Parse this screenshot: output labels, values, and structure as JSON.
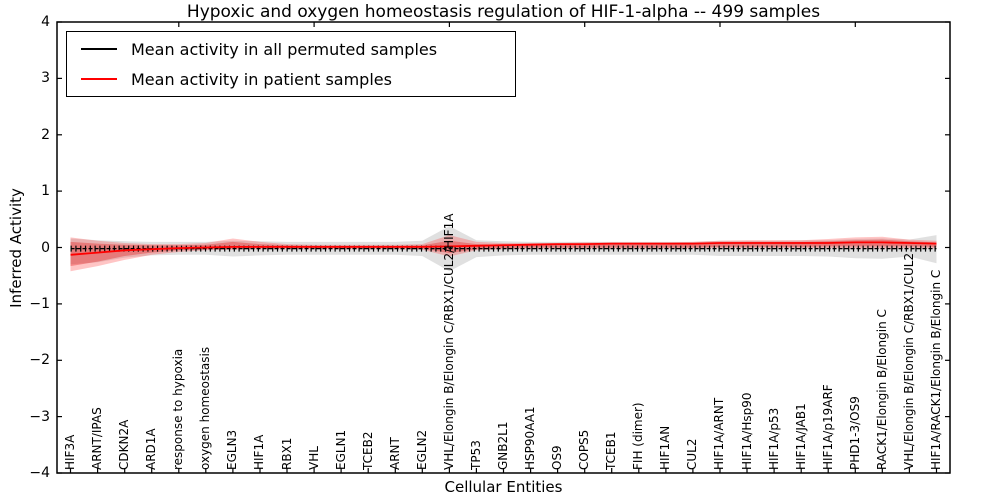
{
  "chart_data": {
    "type": "line",
    "title": "Hypoxic and oxygen homeostasis regulation of HIF-1-alpha -- 499 samples",
    "xlabel": "Cellular Entities",
    "ylabel": "Inferred Activity",
    "ylim": [
      -4,
      4
    ],
    "yticks": [
      4,
      3,
      2,
      1,
      0,
      -1,
      -2,
      -3,
      -4
    ],
    "ytick_labels": [
      "4",
      "3",
      "2",
      "1",
      "0",
      "−1",
      "−2",
      "−3",
      "−4"
    ],
    "grid": false,
    "legend_position": "upper left",
    "top_tick_indices": [
      4,
      9,
      14,
      19,
      24,
      29
    ],
    "categories": [
      "HIF3A",
      "ARNT/IPAS",
      "CDKN2A",
      "ARD1A",
      "response to hypoxia",
      "oxygen homeostasis",
      "EGLN3",
      "HIF1A",
      "RBX1",
      "VHL",
      "EGLN1",
      "TCEB2",
      "ARNT",
      "EGLN2",
      "VHL/Elongin B/Elongin C/RBX1/CUL2/HIF1A",
      "TP53",
      "GNB2L1",
      "HSP90AA1",
      "OS9",
      "COPS5",
      "TCEB1",
      "FIH (dimer)",
      "HIF1AN",
      "CUL2",
      "HIF1A/ARNT",
      "HIF1A/Hsp90",
      "HIF1A/p53",
      "HIF1A/JAB1",
      "HIF1A/p19ARF",
      "PHD1-3/OS9",
      "RACK1/Elongin B/Elongin C",
      "VHL/Elongin B/Elongin C/RBX1/CUL2",
      "HIF1A/RACK1/Elongin B/Elongin C"
    ],
    "series": [
      {
        "name": "Mean activity in all permuted samples",
        "kind": "line",
        "color": "#000000",
        "style": "dashed-with-tick-markers",
        "values": [
          -0.02,
          -0.02,
          -0.02,
          -0.02,
          -0.02,
          -0.02,
          -0.02,
          -0.02,
          -0.02,
          -0.02,
          -0.02,
          -0.02,
          -0.02,
          -0.02,
          -0.02,
          -0.02,
          -0.02,
          -0.02,
          -0.02,
          -0.02,
          -0.02,
          -0.02,
          -0.02,
          -0.02,
          -0.02,
          -0.02,
          -0.02,
          -0.02,
          -0.02,
          -0.02,
          -0.02,
          -0.02,
          -0.02
        ]
      },
      {
        "name": "Mean activity in patient samples",
        "kind": "line",
        "color": "#ff0000",
        "values": [
          -0.13,
          -0.09,
          -0.05,
          -0.03,
          -0.01,
          0.0,
          0.01,
          0.01,
          0.01,
          0.01,
          0.01,
          0.01,
          0.01,
          0.01,
          0.02,
          0.03,
          0.04,
          0.05,
          0.06,
          0.06,
          0.07,
          0.07,
          0.07,
          0.07,
          0.08,
          0.08,
          0.08,
          0.08,
          0.08,
          0.09,
          0.09,
          0.08,
          0.07
        ]
      },
      {
        "name": "Permuted samples envelope",
        "kind": "band",
        "color": "#adadad",
        "opacity": 0.38,
        "upper": [
          0.16,
          0.13,
          0.11,
          0.1,
          0.1,
          0.1,
          0.12,
          0.11,
          0.1,
          0.1,
          0.1,
          0.1,
          0.1,
          0.12,
          0.38,
          0.13,
          0.11,
          0.1,
          0.1,
          0.1,
          0.1,
          0.1,
          0.1,
          0.1,
          0.12,
          0.12,
          0.12,
          0.13,
          0.13,
          0.15,
          0.16,
          0.14,
          0.22
        ],
        "lower": [
          -0.3,
          -0.26,
          -0.18,
          -0.14,
          -0.13,
          -0.13,
          -0.16,
          -0.14,
          -0.13,
          -0.13,
          -0.13,
          -0.13,
          -0.13,
          -0.15,
          -0.42,
          -0.17,
          -0.14,
          -0.13,
          -0.13,
          -0.13,
          -0.13,
          -0.13,
          -0.13,
          -0.13,
          -0.15,
          -0.15,
          -0.15,
          -0.15,
          -0.16,
          -0.19,
          -0.2,
          -0.16,
          -0.28
        ]
      },
      {
        "name": "Patient samples envelope (outer)",
        "kind": "band",
        "color": "#ff4040",
        "opacity": 0.3,
        "upper": [
          0.18,
          0.12,
          0.08,
          0.06,
          0.06,
          0.08,
          0.16,
          0.1,
          0.06,
          0.05,
          0.05,
          0.05,
          0.05,
          0.06,
          0.22,
          0.1,
          0.08,
          0.08,
          0.08,
          0.09,
          0.09,
          0.09,
          0.09,
          0.1,
          0.12,
          0.13,
          0.13,
          0.13,
          0.15,
          0.18,
          0.19,
          0.14,
          0.12
        ],
        "lower": [
          -0.42,
          -0.33,
          -0.22,
          -0.13,
          -0.08,
          -0.05,
          -0.04,
          -0.03,
          -0.03,
          -0.03,
          -0.03,
          -0.03,
          -0.03,
          -0.04,
          -0.16,
          -0.05,
          -0.03,
          -0.02,
          -0.02,
          -0.02,
          -0.02,
          -0.02,
          -0.02,
          -0.02,
          -0.01,
          -0.01,
          -0.01,
          -0.01,
          -0.01,
          -0.02,
          -0.02,
          -0.01,
          -0.02
        ]
      },
      {
        "name": "Patient samples envelope (inner)",
        "kind": "band",
        "color": "#e00000",
        "opacity": 0.3,
        "upper": [
          0.1,
          0.07,
          0.05,
          0.04,
          0.04,
          0.05,
          0.1,
          0.06,
          0.04,
          0.03,
          0.03,
          0.03,
          0.03,
          0.04,
          0.12,
          0.06,
          0.05,
          0.06,
          0.06,
          0.07,
          0.07,
          0.07,
          0.07,
          0.08,
          0.09,
          0.1,
          0.1,
          0.1,
          0.11,
          0.13,
          0.14,
          0.11,
          0.09
        ],
        "lower": [
          -0.33,
          -0.25,
          -0.15,
          -0.09,
          -0.05,
          -0.03,
          -0.02,
          -0.01,
          -0.01,
          -0.01,
          -0.01,
          -0.01,
          -0.01,
          -0.02,
          -0.1,
          -0.03,
          -0.01,
          0.0,
          0.0,
          0.0,
          0.0,
          0.0,
          0.0,
          0.0,
          0.01,
          0.01,
          0.01,
          0.01,
          0.02,
          0.02,
          0.02,
          0.02,
          0.01
        ]
      }
    ]
  },
  "legend": {
    "entries": [
      {
        "label": "Mean activity in all permuted samples",
        "color": "#000000"
      },
      {
        "label": "Mean activity in patient samples",
        "color": "#ff0000"
      }
    ]
  },
  "colors": {
    "axis": "#000000",
    "background": "#ffffff"
  }
}
